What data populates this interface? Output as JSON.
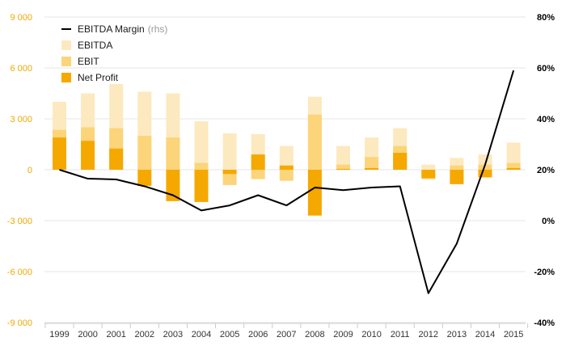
{
  "chart_data": {
    "type": "bar",
    "categories": [
      "1999",
      "2000",
      "2001",
      "2002",
      "2003",
      "2004",
      "2005",
      "2006",
      "2007",
      "2008",
      "2009",
      "2010",
      "2011",
      "2012",
      "2013",
      "2014",
      "2015"
    ],
    "series": [
      {
        "name": "EBITDA",
        "type": "bar",
        "color": "#fde9bf",
        "values": [
          4000,
          4500,
          5050,
          4600,
          4500,
          2850,
          2150,
          2100,
          1400,
          4300,
          1400,
          1900,
          2450,
          300,
          700,
          900,
          1600
        ]
      },
      {
        "name": "EBIT",
        "type": "bar",
        "color": "#fcd47a",
        "values": [
          2350,
          2500,
          2450,
          2000,
          1900,
          400,
          -900,
          -550,
          -650,
          3250,
          300,
          750,
          1400,
          -550,
          250,
          300,
          400
        ]
      },
      {
        "name": "Net Profit",
        "type": "bar",
        "color": "#f5a800",
        "values": [
          1900,
          1700,
          1250,
          -950,
          -1850,
          -1900,
          -250,
          900,
          250,
          -2700,
          50,
          100,
          1000,
          -500,
          -850,
          -450,
          100
        ]
      },
      {
        "name": "EBITDA Margin",
        "name_suffix": "(rhs)",
        "type": "line",
        "axis": "right",
        "color": "#000000",
        "values": [
          20,
          16.5,
          16.2,
          13.5,
          10,
          4,
          6,
          10,
          6,
          13,
          12,
          13,
          13.5,
          -28.5,
          -9,
          22,
          59
        ]
      }
    ],
    "left_axis": {
      "ylim": [
        -9000,
        9000
      ],
      "ticks": [
        "9 000",
        "6 000",
        "3 000",
        "0",
        "-3 000",
        "-6 000",
        "-9 000"
      ],
      "tick_values": [
        9000,
        6000,
        3000,
        0,
        -3000,
        -6000,
        -9000
      ]
    },
    "right_axis": {
      "ylim": [
        -40,
        80
      ],
      "ticks": [
        "80%",
        "60%",
        "40%",
        "20%",
        "0%",
        "-20%",
        "-40%"
      ],
      "tick_values": [
        80,
        60,
        40,
        20,
        0,
        -20,
        -40
      ]
    },
    "grid": true,
    "legend_position": "top-left"
  }
}
